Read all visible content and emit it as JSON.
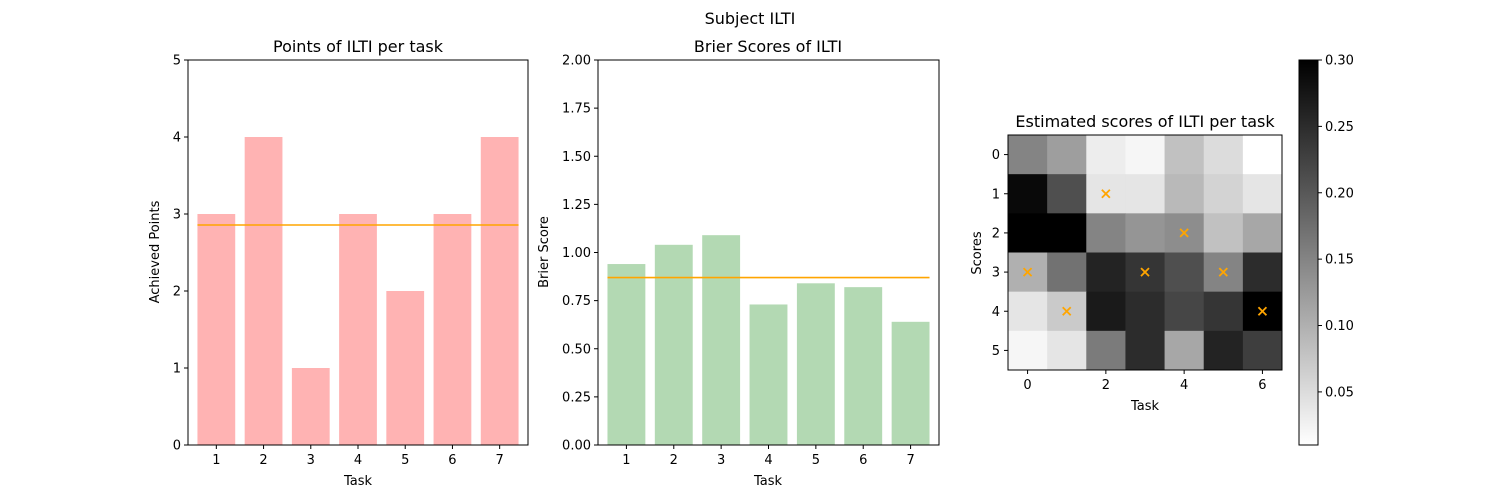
{
  "figure": {
    "suptitle": "Subject ILTI"
  },
  "chart_data": [
    {
      "type": "bar",
      "title": "Points of ILTI per task",
      "xlabel": "Task",
      "ylabel": "Achieved Points",
      "categories": [
        "1",
        "2",
        "3",
        "4",
        "5",
        "6",
        "7"
      ],
      "values": [
        3,
        4,
        1,
        3,
        2,
        3,
        4
      ],
      "mean_line": 2.857,
      "ylim": [
        0,
        5
      ],
      "yticks": [
        "0",
        "1",
        "2",
        "3",
        "4",
        "5"
      ],
      "bar_color": "#ffb3b3",
      "line_color": "#ffa500"
    },
    {
      "type": "bar",
      "title": "Brier Scores of ILTI",
      "xlabel": "Task",
      "ylabel": "Brier Score",
      "categories": [
        "1",
        "2",
        "3",
        "4",
        "5",
        "6",
        "7"
      ],
      "values": [
        0.94,
        1.04,
        1.09,
        0.73,
        0.84,
        0.82,
        0.64
      ],
      "mean_line": 0.87,
      "ylim": [
        0,
        2
      ],
      "yticks": [
        "0.00",
        "0.25",
        "0.50",
        "0.75",
        "1.00",
        "1.25",
        "1.50",
        "1.75",
        "2.00"
      ],
      "bar_color": "#b3d9b3",
      "line_color": "#ffa500"
    },
    {
      "type": "heatmap",
      "title": "Estimated scores of ILTI per task",
      "xlabel": "Task",
      "ylabel": "Scores",
      "xticks": [
        "0",
        "2",
        "4",
        "6"
      ],
      "yticks": [
        "0",
        "1",
        "2",
        "3",
        "4",
        "5"
      ],
      "matrix": [
        [
          0.15,
          0.12,
          0.03,
          0.02,
          0.08,
          0.05,
          0.0
        ],
        [
          0.29,
          0.21,
          0.04,
          0.04,
          0.09,
          0.06,
          0.04
        ],
        [
          0.3,
          0.3,
          0.15,
          0.13,
          0.14,
          0.08,
          0.11
        ],
        [
          0.1,
          0.17,
          0.26,
          0.24,
          0.21,
          0.15,
          0.25
        ],
        [
          0.04,
          0.07,
          0.27,
          0.25,
          0.22,
          0.24,
          0.3
        ],
        [
          0.02,
          0.04,
          0.16,
          0.25,
          0.11,
          0.26,
          0.23
        ]
      ],
      "achieved": [
        3,
        4,
        1,
        3,
        2,
        3,
        4
      ],
      "colorbar": {
        "vmin": 0.01,
        "vmax": 0.3,
        "ticks": [
          "0.05",
          "0.10",
          "0.15",
          "0.20",
          "0.25",
          "0.30"
        ],
        "colormap": "gray_r"
      },
      "marker_color": "#ffa500"
    }
  ]
}
